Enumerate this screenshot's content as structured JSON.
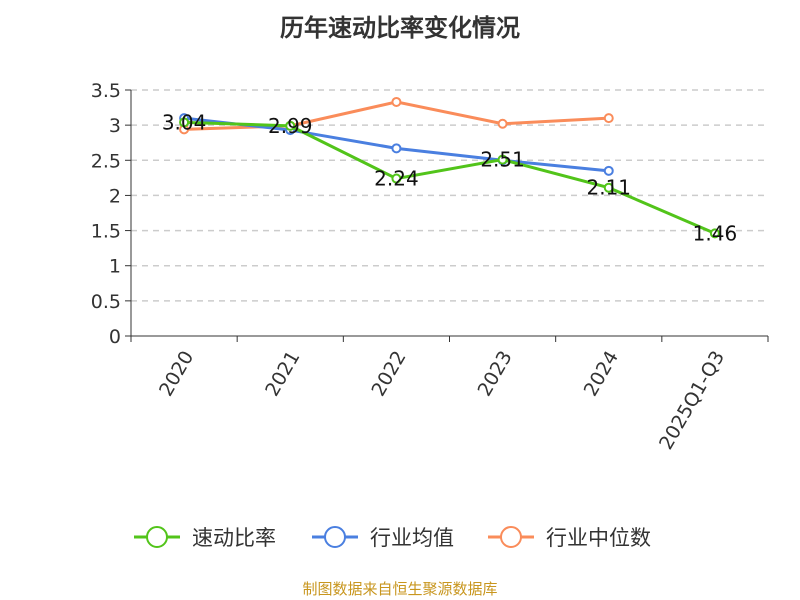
{
  "chart_data": {
    "type": "line",
    "title": "历年速动比率变化情况",
    "categories": [
      "2020",
      "2021",
      "2022",
      "2023",
      "2024",
      "2025Q1-Q3"
    ],
    "ylim": [
      0,
      3.5
    ],
    "yticks": [
      "0",
      "0.5",
      "1",
      "1.5",
      "2",
      "2.5",
      "3",
      "3.5"
    ],
    "grid": true,
    "legend_position": "bottom",
    "series": [
      {
        "name": "速动比率",
        "color": "#52c41a",
        "values": [
          3.04,
          2.99,
          2.24,
          2.51,
          2.11,
          1.46
        ],
        "labels": [
          "3.04",
          "2.99",
          "2.24",
          "2.51",
          "2.11",
          "1.46"
        ]
      },
      {
        "name": "行业均值",
        "color": "#4a7fe0",
        "values": [
          3.1,
          2.93,
          2.67,
          2.5,
          2.35,
          null
        ]
      },
      {
        "name": "行业中位数",
        "color": "#fa8c5a",
        "values": [
          2.94,
          2.99,
          3.33,
          3.02,
          3.1,
          null
        ]
      }
    ]
  },
  "source": "制图数据来自恒生聚源数据库"
}
